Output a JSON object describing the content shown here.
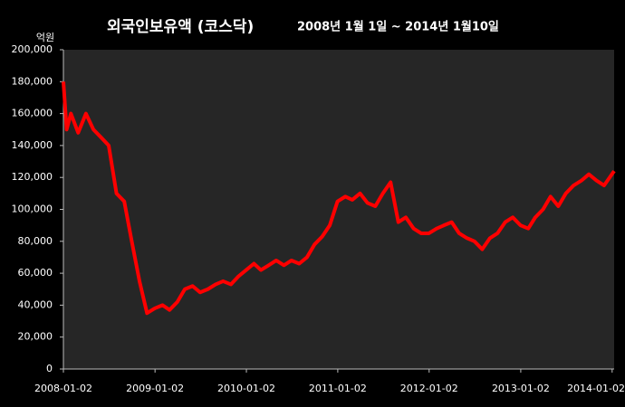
{
  "chart_data": {
    "type": "line",
    "title": "외국인보유액 (코스닥)",
    "subtitle": "2008년 1월 1일 ~ 2014년 1월10일",
    "y_label": "억원",
    "color": "#ff0000",
    "grid": false,
    "xlim": [
      "2008-01-02",
      "2014-01-10"
    ],
    "xticks": [
      "2008-01-02",
      "2009-01-02",
      "2010-01-02",
      "2011-01-02",
      "2012-01-02",
      "2013-01-02",
      "2014-01-02"
    ],
    "ylim": [
      0,
      200000
    ],
    "yticks": [
      0,
      {
        "value": 20000,
        "label": "20,000"
      },
      {
        "value": 40000,
        "label": "40,000"
      },
      {
        "value": 60000,
        "label": "60,000"
      },
      {
        "value": 80000,
        "label": "80,000"
      },
      {
        "value": 100000,
        "label": "100,000"
      },
      {
        "value": 120000,
        "label": "120,000"
      },
      {
        "value": 140000,
        "label": "140,000"
      },
      {
        "value": 160000,
        "label": "160,000"
      },
      {
        "value": 180000,
        "label": "180,000"
      },
      {
        "value": 200000,
        "label": "200,000"
      }
    ],
    "x": [
      "2008-01-02",
      "2008-01-15",
      "2008-02-01",
      "2008-03-01",
      "2008-04-01",
      "2008-05-01",
      "2008-06-01",
      "2008-07-01",
      "2008-08-01",
      "2008-09-01",
      "2008-10-01",
      "2008-11-01",
      "2008-12-01",
      "2009-01-01",
      "2009-02-01",
      "2009-03-01",
      "2009-04-01",
      "2009-05-01",
      "2009-06-01",
      "2009-07-01",
      "2009-08-01",
      "2009-09-01",
      "2009-10-01",
      "2009-11-01",
      "2009-12-01",
      "2010-01-01",
      "2010-02-01",
      "2010-03-01",
      "2010-04-01",
      "2010-05-01",
      "2010-06-01",
      "2010-07-01",
      "2010-08-01",
      "2010-09-01",
      "2010-10-01",
      "2010-11-01",
      "2010-12-01",
      "2011-01-01",
      "2011-02-01",
      "2011-03-01",
      "2011-04-01",
      "2011-05-01",
      "2011-06-01",
      "2011-07-01",
      "2011-08-01",
      "2011-09-01",
      "2011-10-01",
      "2011-11-01",
      "2011-12-01",
      "2012-01-01",
      "2012-02-01",
      "2012-03-01",
      "2012-04-01",
      "2012-05-01",
      "2012-06-01",
      "2012-07-01",
      "2012-08-01",
      "2012-09-01",
      "2012-10-01",
      "2012-11-01",
      "2012-12-01",
      "2013-01-01",
      "2013-02-01",
      "2013-03-01",
      "2013-04-01",
      "2013-05-01",
      "2013-06-01",
      "2013-07-01",
      "2013-08-01",
      "2013-09-01",
      "2013-10-01",
      "2013-11-01",
      "2013-12-01",
      "2014-01-10"
    ],
    "values": [
      180000,
      150000,
      160000,
      148000,
      160000,
      150000,
      145000,
      140000,
      110000,
      105000,
      80000,
      55000,
      35000,
      38000,
      40000,
      37000,
      42000,
      50000,
      52000,
      48000,
      50000,
      53000,
      55000,
      53000,
      58000,
      62000,
      66000,
      62000,
      65000,
      68000,
      65000,
      68000,
      66000,
      70000,
      78000,
      83000,
      90000,
      105000,
      108000,
      106000,
      110000,
      104000,
      102000,
      110000,
      117000,
      92000,
      95000,
      88000,
      85000,
      85000,
      88000,
      90000,
      92000,
      85000,
      82000,
      80000,
      75000,
      82000,
      85000,
      92000,
      95000,
      90000,
      88000,
      95000,
      100000,
      108000,
      102000,
      110000,
      115000,
      118000,
      122000,
      118000,
      115000,
      124000
    ]
  }
}
